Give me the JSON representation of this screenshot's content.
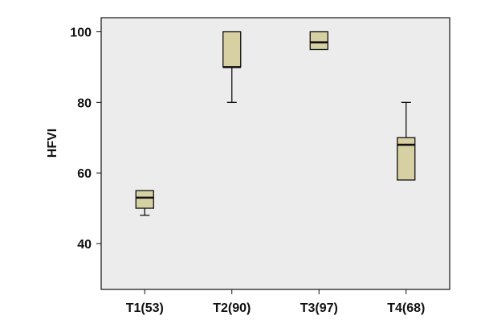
{
  "chart_data": {
    "type": "boxplot",
    "title": "",
    "xlabel": "",
    "ylabel": "HFVI",
    "categories": [
      "T1(53)",
      "T2(90)",
      "T3(97)",
      "T4(68)"
    ],
    "boxes": [
      {
        "category": "T1(53)",
        "whisker_low": 48,
        "q1": 50,
        "median": 53,
        "q3": 55,
        "whisker_high": 55
      },
      {
        "category": "T2(90)",
        "whisker_low": 80,
        "q1": 90,
        "median": 90,
        "q3": 100,
        "whisker_high": 100
      },
      {
        "category": "T3(97)",
        "whisker_low": 95,
        "q1": 95,
        "median": 97,
        "q3": 100,
        "whisker_high": 100
      },
      {
        "category": "T4(68)",
        "whisker_low": 58,
        "q1": 58,
        "median": 68,
        "q3": 70,
        "whisker_high": 80
      }
    ],
    "yticks": [
      40,
      60,
      80,
      100
    ],
    "ylim": [
      27,
      104
    ],
    "grid": false,
    "legend": "none",
    "colors": {
      "box_fill": "#d7d0a2",
      "plot_background": "#ececec",
      "stroke": "#111111"
    }
  }
}
